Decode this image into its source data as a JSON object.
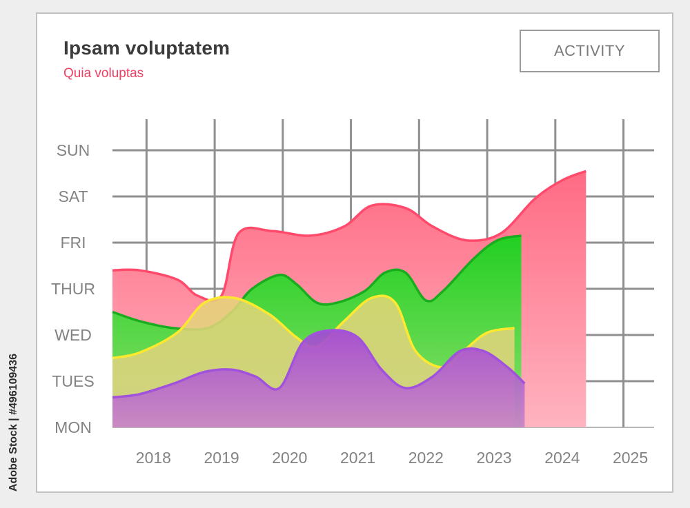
{
  "header": {
    "title": "Ipsam voluptatem",
    "subtitle": "Quia voluptas",
    "button_label": "ACTIVITY"
  },
  "side_caption": "Adobe Stock | #496109436",
  "colors": {
    "title": "#3b3b3d",
    "subtitle": "#ef3f63",
    "grid": "#8f8f92",
    "tick_text": "#838386"
  },
  "chart_data": {
    "type": "area",
    "title": "Ipsam voluptatem",
    "subtitle": "Quia voluptas",
    "xlabel": "",
    "ylabel": "",
    "x_tick_labels": [
      "2018",
      "2019",
      "2020",
      "2021",
      "2022",
      "2023",
      "2024",
      "2025"
    ],
    "y_tick_labels": [
      "MON",
      "TUES",
      "WED",
      "THUR",
      "FRI",
      "SAT",
      "SUN"
    ],
    "x_range": [
      2017.5,
      2025.45
    ],
    "y_range": [
      0,
      6
    ],
    "grid": true,
    "legend": "none",
    "series": [
      {
        "color_top": "#ff6b83",
        "color_bottom": "#ffb3c0",
        "line": "#ff4a6c",
        "opacity": 1,
        "points": [
          [
            2017.5,
            3.4
          ],
          [
            2017.9,
            3.4
          ],
          [
            2018.45,
            3.2
          ],
          [
            2018.75,
            2.85
          ],
          [
            2019.1,
            2.85
          ],
          [
            2019.35,
            4.2
          ],
          [
            2019.85,
            4.25
          ],
          [
            2020.4,
            4.15
          ],
          [
            2020.9,
            4.35
          ],
          [
            2021.3,
            4.8
          ],
          [
            2021.8,
            4.75
          ],
          [
            2022.2,
            4.35
          ],
          [
            2022.7,
            4.05
          ],
          [
            2023.2,
            4.2
          ],
          [
            2023.7,
            4.95
          ],
          [
            2024.1,
            5.35
          ],
          [
            2024.45,
            5.55
          ]
        ]
      },
      {
        "color_top": "#22cf22",
        "color_bottom": "#8fdf6e",
        "line": "#19ac1e",
        "opacity": 1,
        "points": [
          [
            2017.5,
            2.5
          ],
          [
            2017.9,
            2.3
          ],
          [
            2018.4,
            2.15
          ],
          [
            2018.9,
            2.15
          ],
          [
            2019.25,
            2.5
          ],
          [
            2019.55,
            3.0
          ],
          [
            2019.95,
            3.3
          ],
          [
            2020.2,
            3.1
          ],
          [
            2020.5,
            2.7
          ],
          [
            2020.8,
            2.7
          ],
          [
            2021.2,
            2.95
          ],
          [
            2021.5,
            3.35
          ],
          [
            2021.8,
            3.35
          ],
          [
            2022.1,
            2.75
          ],
          [
            2022.35,
            2.95
          ],
          [
            2022.8,
            3.65
          ],
          [
            2023.15,
            4.05
          ],
          [
            2023.5,
            4.15
          ]
        ]
      },
      {
        "color_top": "#e6d678",
        "color_bottom": "#ddd084",
        "line": "#ffe92e",
        "opacity": 0.85,
        "points": [
          [
            2017.5,
            1.5
          ],
          [
            2017.9,
            1.62
          ],
          [
            2018.45,
            2.05
          ],
          [
            2018.85,
            2.7
          ],
          [
            2019.3,
            2.8
          ],
          [
            2019.8,
            2.45
          ],
          [
            2020.2,
            1.95
          ],
          [
            2020.5,
            1.75
          ],
          [
            2020.9,
            2.3
          ],
          [
            2021.3,
            2.8
          ],
          [
            2021.65,
            2.7
          ],
          [
            2021.95,
            1.65
          ],
          [
            2022.35,
            1.3
          ],
          [
            2022.65,
            1.65
          ],
          [
            2023.0,
            2.05
          ],
          [
            2023.4,
            2.15
          ]
        ]
      },
      {
        "color_top": "#a244d8",
        "color_bottom": "#c882c8",
        "line": "#a152dc",
        "opacity": 0.9,
        "points": [
          [
            2017.5,
            0.65
          ],
          [
            2017.9,
            0.72
          ],
          [
            2018.4,
            0.95
          ],
          [
            2018.85,
            1.2
          ],
          [
            2019.25,
            1.25
          ],
          [
            2019.6,
            1.1
          ],
          [
            2019.95,
            0.85
          ],
          [
            2020.3,
            1.85
          ],
          [
            2020.7,
            2.1
          ],
          [
            2021.1,
            1.95
          ],
          [
            2021.45,
            1.25
          ],
          [
            2021.8,
            0.85
          ],
          [
            2022.2,
            1.1
          ],
          [
            2022.6,
            1.65
          ],
          [
            2022.95,
            1.65
          ],
          [
            2023.3,
            1.3
          ],
          [
            2023.55,
            0.95
          ]
        ]
      }
    ]
  }
}
